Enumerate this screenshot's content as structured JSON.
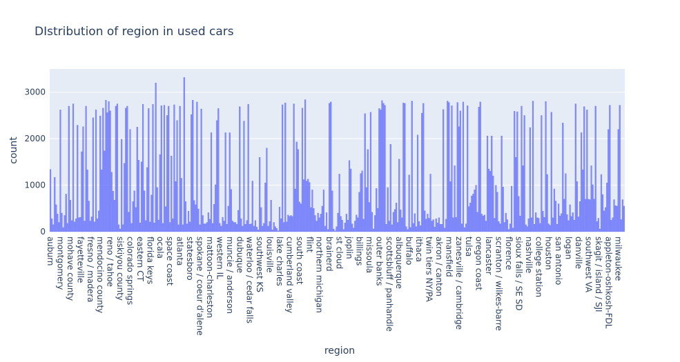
{
  "chart_data": {
    "type": "bar",
    "title": "DIstribution of region in used cars",
    "x_label": "region",
    "y_label": "count",
    "color": "#636efa",
    "grid": true,
    "ylim": [
      0,
      3500
    ],
    "yticks": [
      0,
      1000,
      2000,
      3000
    ],
    "categories": [
      "auburn",
      null,
      null,
      null,
      null,
      null,
      null,
      "montgomery",
      null,
      null,
      null,
      null,
      null,
      null,
      "mohave county",
      null,
      null,
      null,
      null,
      null,
      null,
      "fayetteville",
      null,
      null,
      null,
      null,
      null,
      null,
      "fresno / madera",
      null,
      null,
      null,
      null,
      null,
      null,
      "mendocino county",
      null,
      null,
      null,
      null,
      null,
      null,
      "reno / tahoe",
      null,
      null,
      null,
      null,
      null,
      null,
      "siskiyou county",
      null,
      null,
      null,
      null,
      null,
      null,
      "colorado springs",
      null,
      null,
      null,
      null,
      null,
      null,
      "eastern CT",
      null,
      null,
      null,
      null,
      null,
      null,
      "florida keys",
      null,
      null,
      null,
      null,
      null,
      null,
      "ocala",
      null,
      null,
      null,
      null,
      null,
      null,
      "space coast",
      null,
      null,
      null,
      null,
      null,
      null,
      "atlanta",
      null,
      null,
      null,
      null,
      null,
      null,
      "statesboro",
      null,
      null,
      null,
      null,
      null,
      null,
      "spokane / coeur d'alene",
      null,
      null,
      null,
      null,
      null,
      null,
      "mattoon-charleston",
      null,
      null,
      null,
      null,
      null,
      null,
      "western IL",
      null,
      null,
      null,
      null,
      null,
      null,
      "muncie / anderson",
      null,
      null,
      null,
      null,
      null,
      null,
      "dubuque",
      null,
      null,
      null,
      null,
      null,
      null,
      "waterloo / cedar falls",
      null,
      null,
      null,
      null,
      null,
      null,
      "southwest KS",
      null,
      null,
      null,
      null,
      null,
      null,
      "louisville",
      null,
      null,
      null,
      null,
      null,
      null,
      "lake charles",
      null,
      null,
      null,
      null,
      null,
      null,
      "cumberland valley",
      null,
      null,
      null,
      null,
      null,
      null,
      "south coast",
      null,
      null,
      null,
      null,
      null,
      null,
      "flint",
      null,
      null,
      null,
      null,
      null,
      null,
      "northern michigan",
      null,
      null,
      null,
      null,
      null,
      null,
      "brainerd",
      null,
      null,
      null,
      null,
      null,
      null,
      "st cloud",
      null,
      null,
      null,
      null,
      null,
      null,
      "joplin",
      null,
      null,
      null,
      null,
      null,
      null,
      "billings",
      null,
      null,
      null,
      null,
      null,
      null,
      "missoula",
      null,
      null,
      null,
      null,
      null,
      null,
      "outer banks",
      null,
      null,
      null,
      null,
      null,
      null,
      "scottsbluff / panhandle",
      null,
      null,
      null,
      null,
      null,
      null,
      "albuquerque",
      null,
      null,
      null,
      null,
      null,
      null,
      "buffalo",
      null,
      null,
      null,
      null,
      null,
      null,
      "ithaca",
      null,
      null,
      null,
      null,
      null,
      null,
      "twin tiers NY/PA",
      null,
      null,
      null,
      null,
      null,
      null,
      "akron / canton",
      null,
      null,
      null,
      null,
      null,
      null,
      "mansfield",
      null,
      null,
      null,
      null,
      null,
      null,
      "zanesville / cambridge",
      null,
      null,
      null,
      null,
      null,
      null,
      "tulsa",
      null,
      null,
      null,
      null,
      null,
      null,
      "oregon coast",
      null,
      null,
      null,
      null,
      null,
      null,
      "lancaster",
      null,
      null,
      null,
      null,
      null,
      null,
      "scranton / wilkes-barre",
      null,
      null,
      null,
      null,
      null,
      null,
      "florence",
      null,
      null,
      null,
      null,
      null,
      null,
      "sioux falls / SE SD",
      null,
      null,
      null,
      null,
      null,
      null,
      "nashville",
      null,
      null,
      null,
      null,
      null,
      null,
      "college station",
      null,
      null,
      null,
      null,
      null,
      null,
      "houston",
      null,
      null,
      null,
      null,
      null,
      null,
      "san antonio",
      null,
      null,
      null,
      null,
      null,
      null,
      "logan",
      null,
      null,
      null,
      null,
      null,
      null,
      "danville",
      null,
      null,
      null,
      null,
      null,
      null,
      "southwest VA",
      null,
      null,
      null,
      null,
      null,
      null,
      "skagit / island / SJI",
      null,
      null,
      null,
      null,
      null,
      null,
      "appleton-oshkosh-FDL",
      null,
      null,
      null,
      null,
      null,
      null,
      "milwaukee",
      null,
      null,
      null,
      null
    ],
    "values": [
      1340,
      280,
      150,
      1170,
      580,
      380,
      200,
      2620,
      400,
      90,
      350,
      810,
      180,
      2700,
      680,
      240,
      2750,
      210,
      280,
      2290,
      300,
      310,
      1720,
      2260,
      230,
      2700,
      1330,
      660,
      230,
      320,
      2450,
      210,
      2620,
      280,
      450,
      2490,
      1330,
      2660,
      1740,
      2830,
      2560,
      2800,
      2600,
      1280,
      870,
      680,
      2700,
      2750,
      150,
      60,
      1990,
      150,
      1470,
      2660,
      2700,
      420,
      2200,
      180,
      650,
      880,
      520,
      2250,
      1540,
      190,
      1500,
      2740,
      880,
      240,
      1380,
      2650,
      210,
      790,
      2740,
      190,
      3200,
      950,
      250,
      1660,
      2710,
      180,
      2720,
      540,
      2500,
      2700,
      200,
      1630,
      280,
      2730,
      1080,
      2390,
      150,
      2700,
      1150,
      150,
      3320,
      650,
      170,
      440,
      210,
      2520,
      2830,
      670,
      580,
      2790,
      490,
      150,
      2640,
      350,
      170,
      170,
      200,
      410,
      270,
      2130,
      180,
      590,
      1010,
      2390,
      2650,
      180,
      120,
      310,
      230,
      2130,
      160,
      550,
      2130,
      910,
      230,
      200,
      200,
      160,
      460,
      2690,
      280,
      120,
      2380,
      160,
      240,
      2740,
      160,
      170,
      1090,
      120,
      240,
      100,
      40,
      1600,
      520,
      120,
      180,
      1050,
      1800,
      120,
      220,
      680,
      40,
      200,
      110,
      70,
      20,
      530,
      280,
      2730,
      200,
      2770,
      210,
      360,
      330,
      350,
      330,
      2750,
      920,
      1930,
      1770,
      640,
      600,
      2660,
      1120,
      2840,
      1090,
      1130,
      1060,
      520,
      900,
      500,
      350,
      230,
      400,
      300,
      380,
      550,
      900,
      120,
      410,
      50,
      2760,
      2790,
      880,
      60,
      20,
      110,
      400,
      1240,
      330,
      250,
      50,
      190,
      380,
      250,
      1530,
      1350,
      170,
      80,
      230,
      360,
      300,
      850,
      1250,
      1310,
      270,
      2540,
      950,
      1770,
      630,
      2570,
      420,
      60,
      350,
      930,
      500,
      2650,
      2620,
      2820,
      2760,
      2720,
      160,
      950,
      230,
      1880,
      150,
      420,
      480,
      620,
      200,
      1560,
      470,
      300,
      2770,
      2760,
      110,
      50,
      1220,
      90,
      2810,
      180,
      390,
      110,
      2080,
      220,
      130,
      2550,
      2760,
      450,
      270,
      380,
      290,
      1240,
      230,
      260,
      100,
      280,
      190,
      300,
      160,
      160,
      2630,
      80,
      270,
      2810,
      2780,
      1080,
      2710,
      300,
      1420,
      310,
      2780,
      2260,
      2600,
      170,
      2790,
      90,
      170,
      2710,
      540,
      620,
      770,
      810,
      900,
      1000,
      420,
      2680,
      2790,
      380,
      340,
      360,
      230,
      2060,
      1350,
      1300,
      2060,
      1200,
      290,
      1000,
      850,
      220,
      170,
      2060,
      960,
      200,
      400,
      260,
      50,
      170,
      980,
      80,
      2590,
      1600,
      2580,
      760,
      340,
      2700,
      1420,
      2500,
      150,
      110,
      280,
      2240,
      300,
      2810,
      160,
      410,
      300,
      290,
      180,
      2500,
      440,
      310,
      2800,
      1230,
      170,
      140,
      2570,
      300,
      920,
      660,
      160,
      600,
      340,
      390,
      2340,
      700,
      1250,
      370,
      240,
      580,
      330,
      410,
      250,
      2750,
      1080,
      320,
      650,
      2130,
      1330,
      2690,
      700,
      2620,
      700,
      690,
      1420,
      1010,
      700,
      2700,
      220,
      290,
      60,
      1230,
      800,
      450,
      520,
      1050,
      2200,
      2720,
      250,
      300,
      690,
      560,
      550,
      2200,
      2720,
      260,
      690,
      550
    ]
  }
}
